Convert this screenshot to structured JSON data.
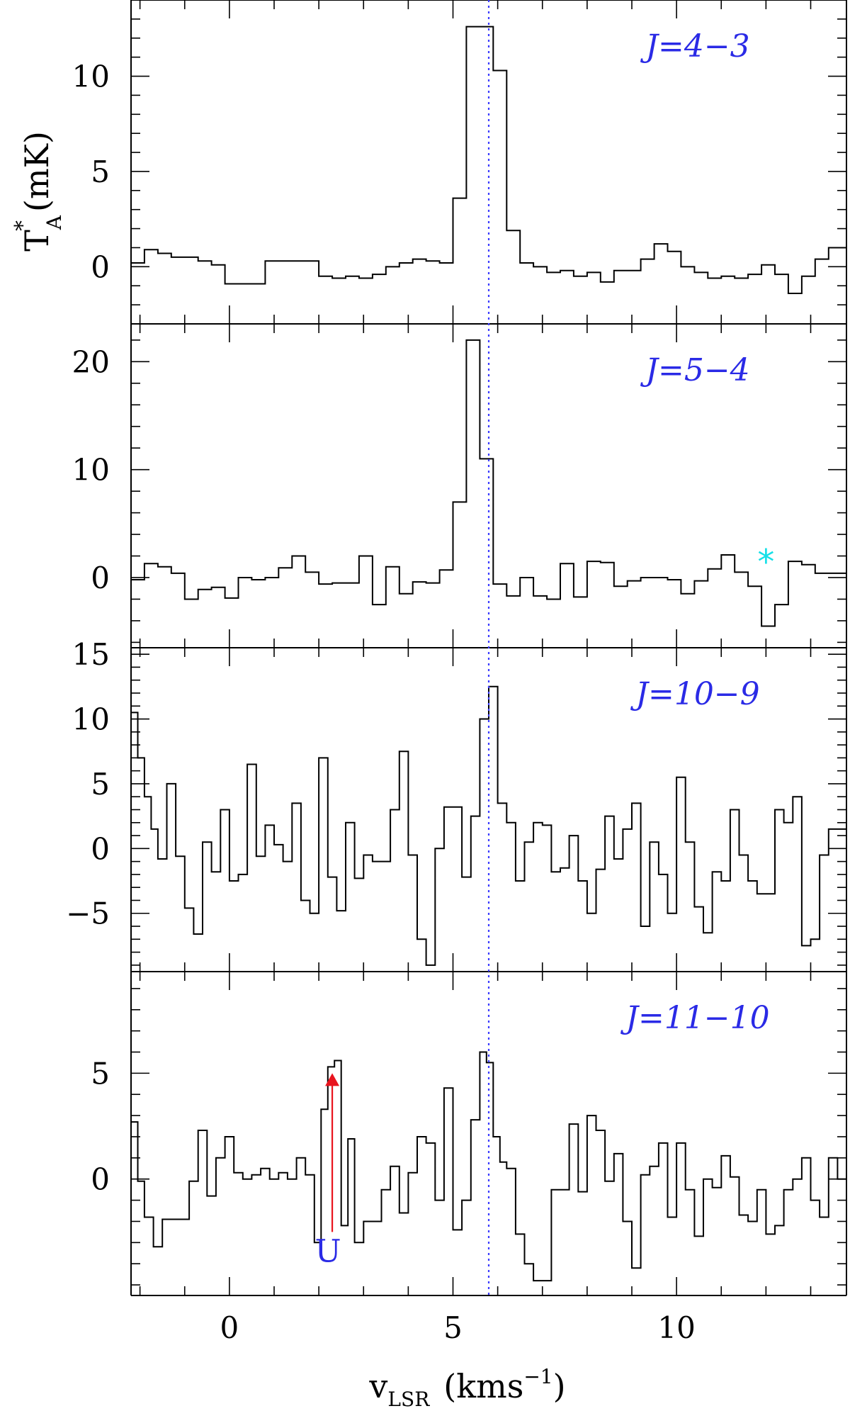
{
  "chart_data": {
    "type": "line",
    "xlabel": "v_LSR (kms^-1)",
    "ylabel": "T*_A (mK)",
    "xlim": [
      -2.2,
      13.8
    ],
    "x_ticks": [
      0,
      5,
      10
    ],
    "x_tick_labels": [
      "0",
      "5",
      "10"
    ],
    "reference_velocity": 5.8,
    "reference_line_color": "#3b3bff",
    "panel_label_color": "#2a2ae6",
    "panels": [
      {
        "label": "J=4−3",
        "ylim": [
          -3,
          14
        ],
        "y_ticks": [
          0,
          5,
          10
        ],
        "y_tick_labels": [
          "0",
          "5",
          "10"
        ],
        "series": {
          "x": [
            -2.2,
            -1.9,
            -1.6,
            -1.3,
            -1.0,
            -0.7,
            -0.4,
            -0.1,
            0.2,
            0.5,
            0.8,
            1.1,
            1.4,
            1.7,
            2.0,
            2.3,
            2.6,
            2.9,
            3.2,
            3.5,
            3.8,
            4.1,
            4.4,
            4.7,
            5.0,
            5.3,
            5.6,
            5.9,
            6.2,
            6.5,
            6.8,
            7.1,
            7.4,
            7.7,
            8.0,
            8.3,
            8.6,
            8.9,
            9.2,
            9.5,
            9.8,
            10.1,
            10.4,
            10.7,
            11.0,
            11.3,
            11.6,
            11.9,
            12.2,
            12.5,
            12.8,
            13.1,
            13.4,
            13.8
          ],
          "y": [
            0.2,
            0.9,
            0.7,
            0.5,
            0.5,
            0.3,
            0.1,
            -0.9,
            -0.9,
            -0.9,
            0.3,
            0.3,
            0.3,
            0.3,
            -0.5,
            -0.6,
            -0.5,
            -0.6,
            -0.4,
            0.0,
            0.2,
            0.4,
            0.3,
            0.2,
            3.6,
            12.6,
            12.6,
            10.3,
            1.9,
            0.2,
            0.0,
            -0.3,
            -0.2,
            -0.5,
            -0.3,
            -0.8,
            -0.2,
            -0.2,
            0.4,
            1.2,
            0.8,
            0.0,
            -0.3,
            -0.6,
            -0.5,
            -0.6,
            -0.4,
            0.1,
            -0.4,
            -1.4,
            -0.5,
            0.4,
            1.0,
            1.0
          ]
        }
      },
      {
        "label": "J=5−4",
        "ylim": [
          -6.5,
          23.5
        ],
        "y_ticks": [
          0,
          10,
          20
        ],
        "y_tick_labels": [
          "0",
          "10",
          "20"
        ],
        "annotation": {
          "text": "*",
          "x": 12.0,
          "y": 1.8,
          "color": "#16e0e8"
        },
        "series": {
          "x": [
            -2.2,
            -1.9,
            -1.6,
            -1.3,
            -1.0,
            -0.7,
            -0.4,
            -0.1,
            0.2,
            0.5,
            0.8,
            1.1,
            1.4,
            1.7,
            2.0,
            2.3,
            2.6,
            2.9,
            3.2,
            3.5,
            3.8,
            4.1,
            4.4,
            4.7,
            5.0,
            5.3,
            5.6,
            5.9,
            6.2,
            6.5,
            6.8,
            7.1,
            7.4,
            7.7,
            8.0,
            8.3,
            8.6,
            8.9,
            9.2,
            9.5,
            9.8,
            10.1,
            10.4,
            10.7,
            11.0,
            11.3,
            11.6,
            11.9,
            12.2,
            12.5,
            12.8,
            13.1,
            13.4,
            13.8
          ],
          "y": [
            -0.2,
            1.3,
            1.0,
            0.4,
            -2.0,
            -1.1,
            -0.9,
            -1.9,
            0.0,
            -0.2,
            0.0,
            0.9,
            2.0,
            0.5,
            -0.6,
            -0.5,
            -0.5,
            2.0,
            -2.5,
            1.0,
            -1.5,
            -0.4,
            -0.5,
            0.7,
            7.0,
            22.0,
            11.0,
            -0.6,
            -1.7,
            0.0,
            -1.7,
            -2.0,
            1.3,
            -1.8,
            1.5,
            1.4,
            -0.8,
            -0.3,
            0.0,
            0.0,
            -0.2,
            -1.5,
            -0.3,
            0.8,
            2.1,
            0.5,
            -0.8,
            -4.5,
            -2.5,
            1.5,
            1.2,
            0.4,
            0.4,
            0.4
          ]
        }
      },
      {
        "label": "J=10−9",
        "ylim": [
          -9.5,
          15.5
        ],
        "y_ticks": [
          -5,
          0,
          5,
          10,
          15
        ],
        "y_tick_labels": [
          "−5",
          "0",
          "5",
          "10",
          "15"
        ],
        "series": {
          "x": [
            -2.2,
            -2.05,
            -1.9,
            -1.75,
            -1.6,
            -1.4,
            -1.2,
            -1.0,
            -0.8,
            -0.6,
            -0.4,
            -0.2,
            0.0,
            0.2,
            0.4,
            0.6,
            0.8,
            1.0,
            1.2,
            1.4,
            1.6,
            1.8,
            2.0,
            2.2,
            2.4,
            2.6,
            2.8,
            3.0,
            3.2,
            3.4,
            3.6,
            3.8,
            4.0,
            4.2,
            4.4,
            4.6,
            4.8,
            5.0,
            5.2,
            5.4,
            5.6,
            5.8,
            6.0,
            6.2,
            6.4,
            6.6,
            6.8,
            7.0,
            7.2,
            7.4,
            7.6,
            7.8,
            8.0,
            8.2,
            8.4,
            8.6,
            8.8,
            9.0,
            9.2,
            9.4,
            9.6,
            9.8,
            10.0,
            10.2,
            10.4,
            10.6,
            10.8,
            11.0,
            11.2,
            11.4,
            11.6,
            11.8,
            12.0,
            12.2,
            12.4,
            12.6,
            12.8,
            13.0,
            13.2,
            13.4,
            13.6,
            13.8
          ],
          "y": [
            10.5,
            7.0,
            4.0,
            1.5,
            -0.8,
            5.0,
            -0.6,
            -4.6,
            -6.6,
            0.5,
            -1.8,
            3.0,
            -2.5,
            -2.0,
            6.5,
            -0.6,
            1.8,
            0.3,
            -1.0,
            3.5,
            -4.0,
            -5.0,
            7.0,
            -2.2,
            -4.8,
            2.0,
            -2.3,
            -0.5,
            -1.0,
            -1.0,
            3.0,
            7.5,
            -0.5,
            -7.0,
            -9.0,
            0.0,
            3.2,
            3.2,
            -2.2,
            2.5,
            10.0,
            12.5,
            3.5,
            2.0,
            -2.5,
            0.5,
            2.0,
            1.8,
            -1.8,
            -1.5,
            1.0,
            -2.5,
            -5.0,
            -1.6,
            2.5,
            -0.8,
            1.5,
            3.5,
            -6.0,
            0.5,
            -2.0,
            -5.0,
            5.5,
            0.5,
            -4.5,
            -6.5,
            -1.8,
            -2.5,
            3.0,
            -0.5,
            -2.5,
            -3.5,
            -3.5,
            3.0,
            2.0,
            4.0,
            -7.5,
            -7.0,
            -0.5,
            1.5,
            1.5,
            1.5
          ]
        }
      },
      {
        "label": "J=11−10",
        "ylim": [
          -5.5,
          9.8
        ],
        "y_ticks": [
          0,
          5
        ],
        "y_tick_labels": [
          "0",
          "5"
        ],
        "annotation": {
          "text": "U",
          "x": 2.3,
          "y_start": -2.5,
          "y_end": 5.0,
          "color": "#e8141e"
        },
        "series": {
          "x": [
            -2.2,
            -2.05,
            -1.9,
            -1.7,
            -1.5,
            -1.3,
            -1.1,
            -0.9,
            -0.7,
            -0.5,
            -0.3,
            -0.1,
            0.1,
            0.3,
            0.5,
            0.7,
            0.9,
            1.1,
            1.3,
            1.5,
            1.7,
            1.9,
            2.05,
            2.2,
            2.35,
            2.5,
            2.65,
            2.8,
            3.0,
            3.2,
            3.4,
            3.6,
            3.8,
            4.0,
            4.2,
            4.4,
            4.6,
            4.8,
            5.0,
            5.2,
            5.4,
            5.6,
            5.75,
            5.9,
            6.05,
            6.2,
            6.4,
            6.6,
            6.8,
            7.0,
            7.2,
            7.4,
            7.6,
            7.8,
            8.0,
            8.2,
            8.4,
            8.6,
            8.8,
            9.0,
            9.2,
            9.4,
            9.6,
            9.8,
            10.0,
            10.2,
            10.4,
            10.6,
            10.8,
            11.0,
            11.2,
            11.4,
            11.6,
            11.8,
            12.0,
            12.2,
            12.4,
            12.6,
            12.8,
            13.0,
            13.2,
            13.4,
            13.6,
            13.8
          ],
          "y": [
            2.7,
            -0.1,
            -1.8,
            -3.2,
            -1.9,
            -1.9,
            -1.9,
            -0.1,
            2.3,
            -0.8,
            1.0,
            2.0,
            0.3,
            0.0,
            0.2,
            0.5,
            0.0,
            0.3,
            0.0,
            1.0,
            0.2,
            -3.0,
            3.3,
            5.3,
            5.6,
            -2.2,
            1.9,
            -3.0,
            -2.0,
            -2.0,
            -0.5,
            0.6,
            -1.6,
            0.3,
            2.0,
            1.7,
            -1.0,
            4.3,
            -2.4,
            -1.0,
            2.8,
            6.0,
            5.5,
            2.0,
            0.8,
            0.5,
            -2.6,
            -4.0,
            -4.8,
            -4.8,
            -0.5,
            -0.5,
            2.6,
            -0.6,
            3.0,
            2.3,
            -0.1,
            1.2,
            -2.0,
            -4.2,
            0.2,
            0.6,
            1.7,
            -1.8,
            1.7,
            -0.5,
            -2.7,
            0.0,
            -0.4,
            1.1,
            0.1,
            -1.7,
            -2.0,
            -0.5,
            -2.6,
            -2.2,
            -0.5,
            0.0,
            1.0,
            -1.0,
            -1.8,
            1.0,
            0.0,
            0.0
          ]
        }
      }
    ]
  }
}
